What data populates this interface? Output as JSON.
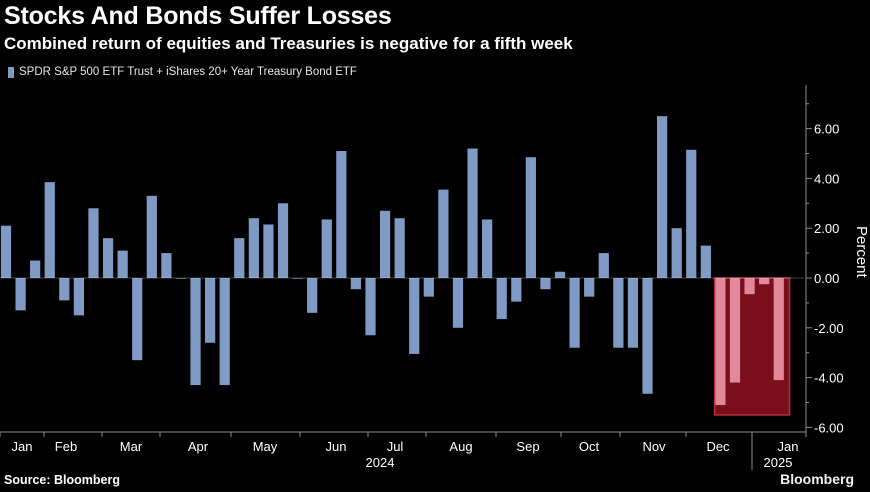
{
  "header": {
    "title": "Stocks And Bonds Suffer Losses",
    "subtitle": "Combined return of equities and Treasuries is negative for a fifth week"
  },
  "footer": {
    "source": "Source: Bloomberg",
    "brand": "Bloomberg"
  },
  "colors": {
    "bar": "#7f9bc5",
    "highlight_fill": "#7a0f1c",
    "highlight_border": "#b23040",
    "highlight_bar": "#e1899a",
    "axis": "#8c8c8c"
  },
  "chart_data": {
    "type": "bar",
    "legend": "SPDR S&P 500 ETF Trust + iShares 20+ Year Treasury Bond ETF",
    "ylabel": "Percent",
    "ylim": [
      -6.2,
      7.7
    ],
    "yticks": [
      "6.00",
      "4.00",
      "2.00",
      "0.00",
      "-2.00",
      "-4.00",
      "-6.00"
    ],
    "ytick_values": [
      6,
      4,
      2,
      0,
      -2,
      -4,
      -6
    ],
    "grid": false,
    "months": [
      "Jan",
      "Feb",
      "Mar",
      "Apr",
      "May",
      "Jun",
      "Jul",
      "Aug",
      "Sep",
      "Oct",
      "Nov",
      "Dec",
      "Jan"
    ],
    "years": [
      "2024",
      "2025"
    ],
    "values": [
      2.1,
      -1.3,
      0.7,
      3.85,
      -0.9,
      -1.5,
      2.8,
      1.6,
      1.1,
      -3.3,
      3.3,
      1.0,
      0.0,
      -4.3,
      -2.6,
      -4.3,
      1.6,
      2.4,
      2.15,
      3.0,
      0.0,
      -1.4,
      2.35,
      5.1,
      -0.45,
      -2.3,
      2.7,
      2.4,
      -3.05,
      -0.75,
      3.55,
      -2.0,
      5.2,
      2.35,
      -1.65,
      -0.95,
      4.85,
      -0.45,
      0.25,
      -2.8,
      -0.75,
      1.0,
      -2.8,
      -2.8,
      -4.65,
      6.5,
      2.0,
      5.15,
      1.3,
      -5.1,
      -4.2,
      -0.65,
      -0.25,
      -4.1
    ],
    "highlight": {
      "label": "negative for a fifth week",
      "values": [
        -5.1,
        -4.2,
        -0.65,
        -0.25,
        -4.1
      ],
      "range": [
        0,
        -5.5
      ]
    }
  }
}
